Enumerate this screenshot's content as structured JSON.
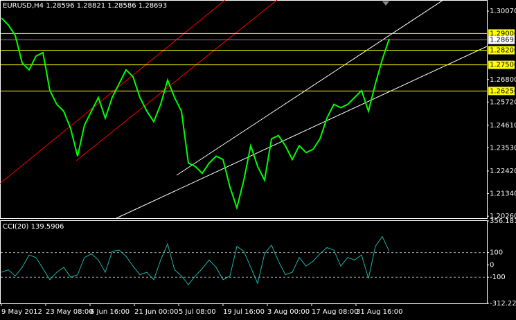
{
  "chart_data": [
    {
      "type": "line",
      "title": "EURUSD,H4  1.28596 1.28821 1.28586 1.28693",
      "color": "#00ff00",
      "values": [
        1.2974,
        1.2941,
        1.2891,
        1.2759,
        1.2726,
        1.2792,
        1.2809,
        1.2627,
        1.2561,
        1.2528,
        1.2445,
        1.2313,
        1.2462,
        1.2528,
        1.2594,
        1.2495,
        1.2594,
        1.266,
        1.2726,
        1.2693,
        1.2594,
        1.2528,
        1.2478,
        1.2561,
        1.2677,
        1.2594,
        1.2528,
        1.228,
        1.2264,
        1.2231,
        1.228,
        1.2313,
        1.2297,
        1.2165,
        1.2066,
        1.2198,
        1.2363,
        1.2264,
        1.2198,
        1.2396,
        1.2412,
        1.2363,
        1.2297,
        1.2363,
        1.233,
        1.2346,
        1.2396,
        1.2495,
        1.2561,
        1.2545,
        1.2561,
        1.2594,
        1.2627,
        1.2528,
        1.266,
        1.2776,
        1.2875
      ],
      "ylim": [
        1.2013,
        1.3057
      ],
      "yticks": [
        {
          "value": 1.3007,
          "label": "1.30070"
        },
        {
          "value": 1.268,
          "label": "1.26800"
        },
        {
          "value": 1.2572,
          "label": "1.25720"
        },
        {
          "value": 1.2461,
          "label": "1.24610"
        },
        {
          "value": 1.2353,
          "label": "1.23530"
        },
        {
          "value": 1.2242,
          "label": "1.22420"
        },
        {
          "value": 1.2134,
          "label": "1.21340"
        },
        {
          "value": 1.2026,
          "label": "1.20260"
        }
      ],
      "levels": [
        {
          "value": 1.29,
          "label": "1.29000"
        },
        {
          "value": 1.282,
          "label": "1.28200"
        },
        {
          "value": 1.275,
          "label": "1.27500"
        },
        {
          "value": 1.2625,
          "label": "1.26250"
        }
      ],
      "level_color": "#ffff00",
      "last_price": {
        "value": 1.28693,
        "label": "1.28693"
      },
      "x_labels": [
        "9 May 2012",
        "23 May 08:00",
        "6 Jun 16:00",
        "21 Jun 00:00",
        "5 Jul 08:00",
        "19 Jul 16:00",
        "3 Aug 00:00",
        "17 Aug 08:00",
        "31 Aug 16:00"
      ]
    },
    {
      "type": "line",
      "title": "CCI(20) 139.5906",
      "color": "#20b2aa",
      "values": [
        -60,
        -40,
        -90,
        -20,
        80,
        60,
        -30,
        -120,
        -60,
        -20,
        -100,
        -80,
        60,
        90,
        40,
        -60,
        110,
        120,
        70,
        -10,
        -80,
        -60,
        -120,
        40,
        170,
        -40,
        -90,
        -160,
        -90,
        -30,
        40,
        -20,
        -120,
        -90,
        150,
        110,
        -20,
        -150,
        90,
        160,
        30,
        -80,
        -60,
        60,
        -10,
        30,
        90,
        140,
        120,
        -10,
        60,
        40,
        80,
        -110,
        150,
        230,
        110
      ],
      "ylim": [
        -312.221,
        356.181
      ],
      "yticks": [
        {
          "value": 356.181,
          "label": "356.181"
        },
        100,
        0,
        -100,
        {
          "value": -312.221,
          "label": "-312.221"
        }
      ],
      "dashed_levels": [
        100,
        -100
      ]
    }
  ]
}
